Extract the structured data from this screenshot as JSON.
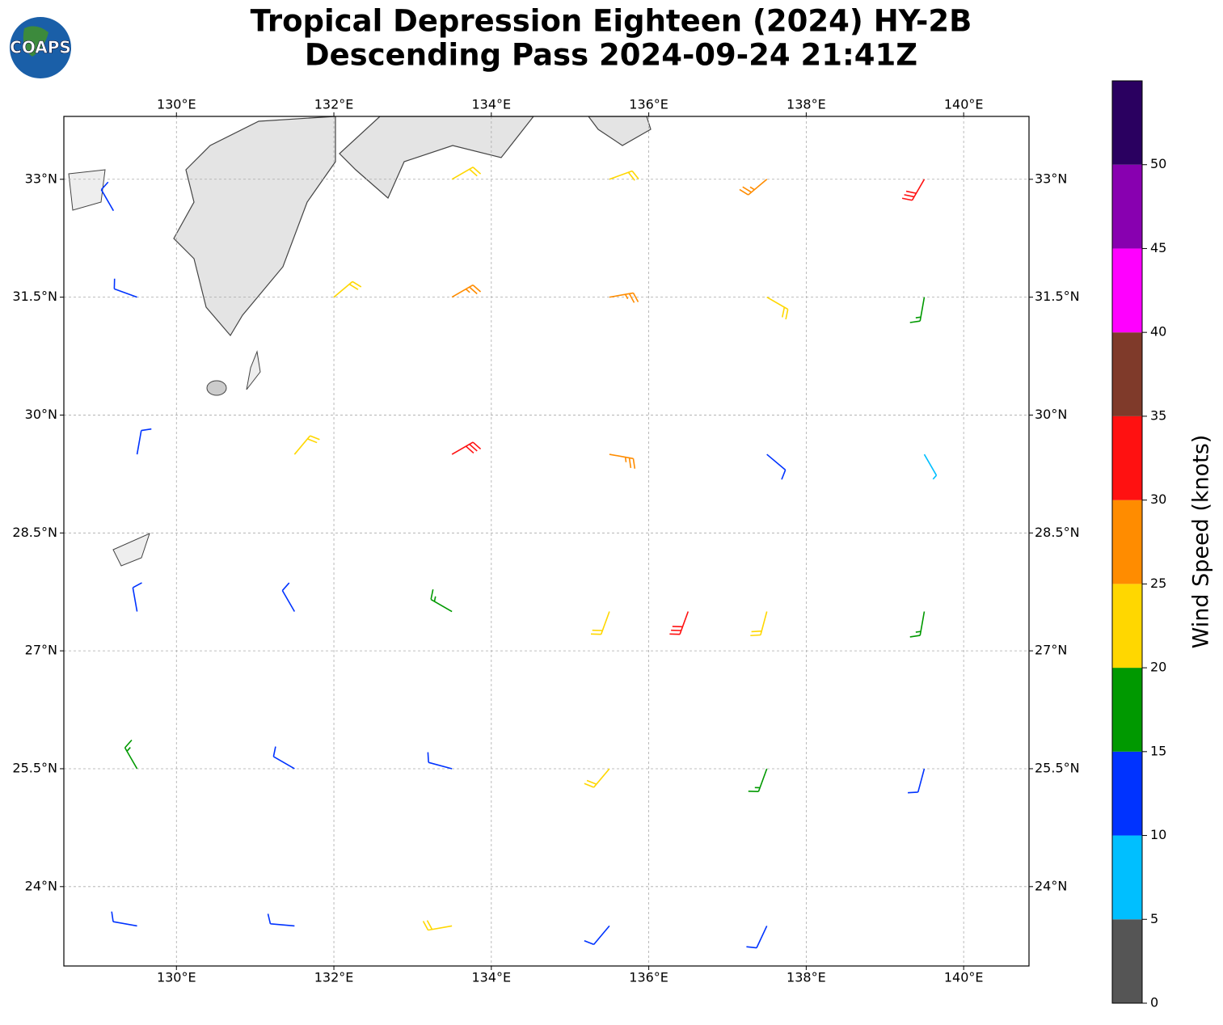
{
  "logo": "COAPS",
  "chart_data": {
    "type": "barbs",
    "title": "Tropical Depression Eighteen (2024) HY-2B",
    "subtitle": "Descending Pass 2024-09-24 21:41Z",
    "xlim": [
      128.57,
      140.83
    ],
    "ylim": [
      22.99,
      33.8
    ],
    "xticks": [
      {
        "value": 130,
        "label": "130°E"
      },
      {
        "value": 132,
        "label": "132°E"
      },
      {
        "value": 134,
        "label": "134°E"
      },
      {
        "value": 136,
        "label": "136°E"
      },
      {
        "value": 138,
        "label": "138°E"
      },
      {
        "value": 140,
        "label": "140°E"
      }
    ],
    "yticks": [
      {
        "value": 24,
        "label": "24°N"
      },
      {
        "value": 25.5,
        "label": "25.5°N"
      },
      {
        "value": 27,
        "label": "27°N"
      },
      {
        "value": 28.5,
        "label": "28.5°N"
      },
      {
        "value": 30,
        "label": "30°N"
      },
      {
        "value": 31.5,
        "label": "31.5°N"
      },
      {
        "value": 33,
        "label": "33°N"
      }
    ],
    "grid": true,
    "lon": [
      129.2,
      133.5,
      135.5,
      137.5,
      139.5,
      129.5,
      132.0,
      133.5,
      135.5,
      137.5,
      139.5,
      129.5,
      131.5,
      133.5,
      135.5,
      137.5,
      139.5,
      129.5,
      131.5,
      133.5,
      135.5,
      136.5,
      137.5,
      139.5,
      129.5,
      131.5,
      133.5,
      135.5,
      137.5,
      139.5,
      129.5,
      131.5,
      133.5,
      135.5,
      137.5
    ],
    "lat": [
      32.6,
      33,
      33,
      33,
      33,
      31.5,
      31.5,
      31.5,
      31.5,
      31.5,
      31.5,
      29.5,
      29.5,
      29.5,
      29.5,
      29.5,
      29.5,
      27.5,
      27.5,
      27.5,
      27.5,
      27.5,
      27.5,
      27.5,
      25.5,
      25.5,
      25.5,
      25.5,
      25.5,
      25.5,
      23.5,
      23.5,
      23.5,
      23.5,
      23.5
    ],
    "speed": [
      13,
      22,
      23,
      27,
      32,
      14,
      24,
      27,
      26,
      23,
      18,
      12,
      24,
      31,
      26,
      14,
      9,
      12,
      12,
      18,
      22,
      32,
      22,
      16,
      17,
      13,
      13,
      22,
      18,
      13,
      10,
      13,
      20,
      13,
      13
    ],
    "direction": [
      330,
      60,
      70,
      230,
      210,
      290,
      50,
      60,
      80,
      120,
      190,
      10,
      40,
      60,
      100,
      130,
      150,
      350,
      330,
      300,
      200,
      200,
      195,
      190,
      330,
      300,
      285,
      220,
      200,
      195,
      280,
      275,
      260,
      220,
      205
    ],
    "colorbar": {
      "label": "Wind Speed (knots)",
      "lim": [
        0,
        55
      ],
      "bounds": [
        0,
        5,
        10,
        15,
        20,
        25,
        30,
        35,
        40,
        45,
        50,
        55
      ],
      "colors": [
        "#555555",
        "#00bfff",
        "#0033ff",
        "#009900",
        "#ffd700",
        "#ff8c00",
        "#ff1111",
        "#7f3a2a",
        "#ff00ff",
        "#8800b0",
        "#2a0060"
      ],
      "ticks": [
        0,
        5,
        10,
        15,
        20,
        25,
        30,
        35,
        40,
        45,
        50
      ]
    }
  }
}
